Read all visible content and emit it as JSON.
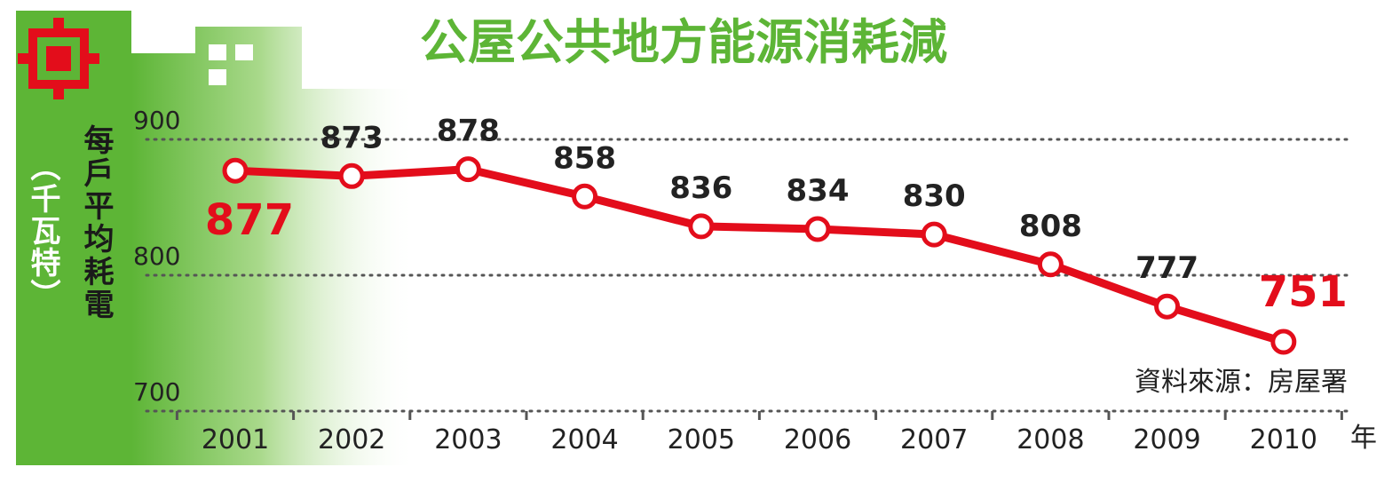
{
  "colors": {
    "accent_green": "#5db536",
    "line_red": "#e30d1b",
    "grid": "#555555"
  },
  "icons": {
    "logo": "red-gear-logo"
  },
  "chart_data": {
    "type": "line",
    "title": "公屋公共地方能源消耗減",
    "ylabel": "每戶平均耗電",
    "ylabel_unit": "（千瓦特）",
    "xlabel_unit": "年",
    "source": "資料來源：房屋署",
    "categories": [
      "2001",
      "2002",
      "2003",
      "2004",
      "2005",
      "2006",
      "2007",
      "2008",
      "2009",
      "2010"
    ],
    "series": [
      {
        "values": [
          877,
          873,
          878,
          858,
          836,
          834,
          830,
          808,
          777,
          751
        ]
      }
    ],
    "ylim": [
      700,
      900
    ],
    "yticks": [
      "700",
      "800",
      "900"
    ],
    "highlighted": [
      "2001",
      "2010"
    ],
    "grid": "dotted horizontal at 700, 800, 900"
  }
}
